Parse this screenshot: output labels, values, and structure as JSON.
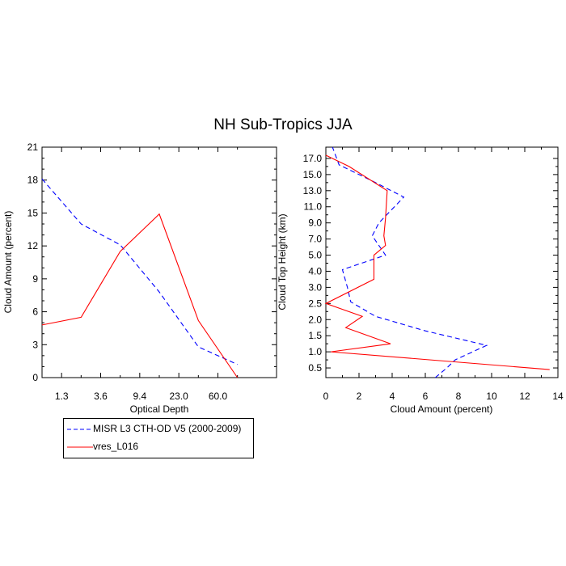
{
  "title": "NH Sub-Tropics JJA",
  "colors": {
    "misr": "#0000ff",
    "model": "#ff0000",
    "axis": "#000000"
  },
  "legend": [
    {
      "label": "MISR L3 CTH-OD V5 (2000-2009)",
      "color": "#0000ff",
      "style": "dashed"
    },
    {
      "label": "vres_L016",
      "color": "#ff0000",
      "style": "solid"
    }
  ],
  "chart_data": [
    {
      "type": "line",
      "xlabel": "Optical Depth",
      "ylabel": "Cloud Amount (percent)",
      "categories": [
        "1.3",
        "3.6",
        "9.4",
        "23.0",
        "60.0"
      ],
      "ylim": [
        0,
        21
      ],
      "yticks": [
        0,
        3,
        6,
        9,
        12,
        15,
        18,
        21
      ],
      "series": [
        {
          "name": "MISR L3 CTH-OD V5 (2000-2009)",
          "x": [
            0,
            1,
            2,
            3,
            4,
            5,
            6
          ],
          "values": [
            18.1,
            14.0,
            12.1,
            7.8,
            2.8,
            1.2,
            null
          ]
        },
        {
          "name": "vres_L016",
          "x": [
            0,
            1,
            2,
            3,
            4,
            5,
            6
          ],
          "values": [
            4.8,
            5.5,
            11.5,
            14.9,
            5.2,
            0.0,
            null
          ]
        }
      ]
    },
    {
      "type": "line",
      "xlabel": "Cloud Amount (percent)",
      "ylabel": "Cloud Top Height (km)",
      "xlim": [
        0,
        14
      ],
      "xticks": [
        0,
        2,
        4,
        6,
        8,
        10,
        12,
        14
      ],
      "height_levels": [
        "0.5",
        "1.0",
        "1.5",
        "2.0",
        "2.5",
        "3.0",
        "4.0",
        "5.0",
        "7.0",
        "9.0",
        "11.0",
        "13.0",
        "15.0",
        "17.0"
      ],
      "height_level_index": [
        0,
        1,
        2,
        3,
        4,
        5,
        6,
        7,
        8,
        9,
        10,
        11,
        12,
        13
      ],
      "series": [
        {
          "name": "MISR L3 CTH-OD V5 (2000-2009)",
          "values": [
            6.6,
            7.3,
            7.8,
            9.7,
            6.0,
            3.0,
            1.5,
            1.3,
            1.0,
            3.6,
            2.8,
            3.2,
            4.7,
            3.0,
            0.8,
            0.4
          ],
          "level": [
            -0.6,
            0.0,
            0.5,
            1.4,
            2.3,
            3.2,
            4.1,
            5.0,
            6.1,
            7.0,
            8.2,
            9.0,
            10.6,
            11.5,
            12.6,
            13.7
          ]
        },
        {
          "name": "vres_L016",
          "values": [
            13.5,
            0.3,
            3.9,
            1.2,
            2.2,
            0.0,
            2.9,
            2.9,
            3.6,
            3.5,
            3.6,
            3.7,
            1.4,
            0.0
          ],
          "level": [
            -0.1,
            1.0,
            1.5,
            2.5,
            3.2,
            4.0,
            5.5,
            7.0,
            7.6,
            8.2,
            9.3,
            11.0,
            12.5,
            13.2
          ]
        }
      ]
    }
  ]
}
